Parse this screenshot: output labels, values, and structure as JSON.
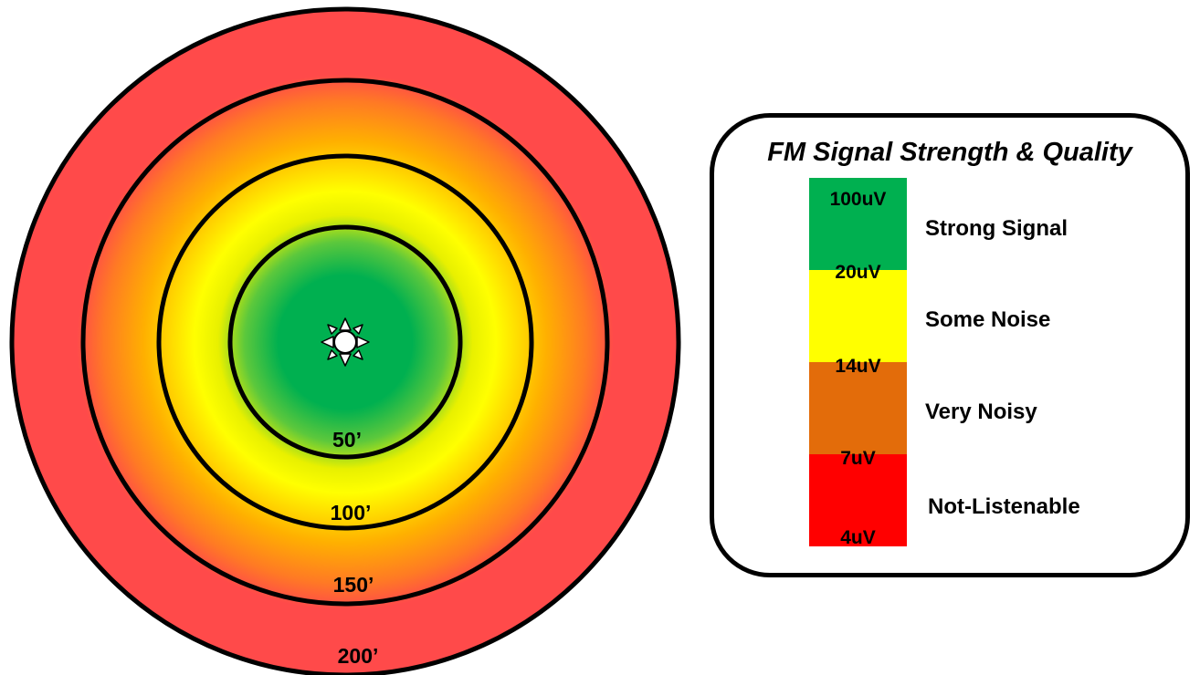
{
  "coverage": {
    "rings": [
      {
        "label": "50’"
      },
      {
        "label": "100’"
      },
      {
        "label": "150’"
      },
      {
        "label": "200’"
      }
    ],
    "transmitter_icon": "sun-transmitter-icon"
  },
  "legend": {
    "title": "FM Signal Strength & Quality",
    "bands": [
      {
        "label": "Strong Signal",
        "color": "#00b050"
      },
      {
        "label": "Some Noise",
        "color": "#ffff00"
      },
      {
        "label": "Very Noisy",
        "color": "#e36c0a"
      },
      {
        "label": "Not-Listenable",
        "color": "#ff0000"
      }
    ],
    "thresholds": [
      "100uV",
      "20uV",
      "14uV",
      "7uV",
      "4uV"
    ]
  }
}
